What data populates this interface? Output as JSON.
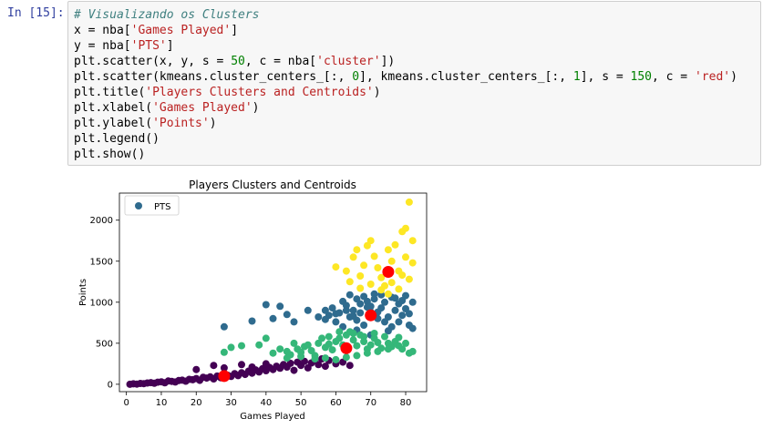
{
  "cell": {
    "prompt": "In [15]:",
    "code_lines": [
      [
        {
          "t": "# Visualizando os Clusters",
          "c": "comment"
        }
      ],
      [
        {
          "t": "x = nba[",
          "c": "plain"
        },
        {
          "t": "'Games Played'",
          "c": "string"
        },
        {
          "t": "]",
          "c": "plain"
        }
      ],
      [
        {
          "t": "y = nba[",
          "c": "plain"
        },
        {
          "t": "'PTS'",
          "c": "string"
        },
        {
          "t": "]",
          "c": "plain"
        }
      ],
      [
        {
          "t": "plt.scatter(x, y, s = ",
          "c": "plain"
        },
        {
          "t": "50",
          "c": "number"
        },
        {
          "t": ", c = nba[",
          "c": "plain"
        },
        {
          "t": "'cluster'",
          "c": "string"
        },
        {
          "t": "])",
          "c": "plain"
        }
      ],
      [
        {
          "t": "plt.scatter(kmeans.cluster_centers_[:, ",
          "c": "plain"
        },
        {
          "t": "0",
          "c": "number"
        },
        {
          "t": "], kmeans.cluster_centers_[:, ",
          "c": "plain"
        },
        {
          "t": "1",
          "c": "number"
        },
        {
          "t": "], s = ",
          "c": "plain"
        },
        {
          "t": "150",
          "c": "number"
        },
        {
          "t": ", c = ",
          "c": "plain"
        },
        {
          "t": "'red'",
          "c": "string"
        },
        {
          "t": ")",
          "c": "plain"
        }
      ],
      [
        {
          "t": "plt.title(",
          "c": "plain"
        },
        {
          "t": "'Players Clusters and Centroids'",
          "c": "string"
        },
        {
          "t": ")",
          "c": "plain"
        }
      ],
      [
        {
          "t": "plt.xlabel(",
          "c": "plain"
        },
        {
          "t": "'Games Played'",
          "c": "string"
        },
        {
          "t": ")",
          "c": "plain"
        }
      ],
      [
        {
          "t": "plt.ylabel(",
          "c": "plain"
        },
        {
          "t": "'Points'",
          "c": "string"
        },
        {
          "t": ")",
          "c": "plain"
        }
      ],
      [
        {
          "t": "plt.legend()",
          "c": "plain"
        }
      ],
      [
        {
          "t": "plt.show()",
          "c": "plain"
        }
      ]
    ]
  },
  "colors": {
    "prompt": "#303f9f",
    "cluster_purple": "#440154",
    "cluster_blue": "#2f6b8e",
    "cluster_green": "#35b779",
    "cluster_yellow": "#fde725",
    "centroid": "#ff0000"
  },
  "chart_data": {
    "type": "scatter",
    "title": "Players Clusters and Centroids",
    "xlabel": "Games Played",
    "ylabel": "Points",
    "xlim": [
      -2,
      86
    ],
    "ylim": [
      -90,
      2330
    ],
    "xticks": [
      0,
      10,
      20,
      30,
      40,
      50,
      60,
      70,
      80
    ],
    "yticks": [
      0,
      500,
      1000,
      1500,
      2000
    ],
    "legend": {
      "label": "PTS",
      "placement": "top-left"
    },
    "series": [
      {
        "cluster": 0,
        "color": "#440154",
        "points": [
          [
            1,
            0
          ],
          [
            2,
            5
          ],
          [
            3,
            2
          ],
          [
            4,
            10
          ],
          [
            5,
            8
          ],
          [
            6,
            15
          ],
          [
            7,
            20
          ],
          [
            8,
            12
          ],
          [
            9,
            25
          ],
          [
            10,
            30
          ],
          [
            11,
            18
          ],
          [
            12,
            40
          ],
          [
            13,
            35
          ],
          [
            14,
            28
          ],
          [
            15,
            45
          ],
          [
            16,
            50
          ],
          [
            17,
            38
          ],
          [
            18,
            60
          ],
          [
            19,
            55
          ],
          [
            20,
            70
          ],
          [
            21,
            48
          ],
          [
            22,
            85
          ],
          [
            23,
            75
          ],
          [
            24,
            90
          ],
          [
            25,
            65
          ],
          [
            26,
            100
          ],
          [
            27,
            80
          ],
          [
            29,
            110
          ],
          [
            30,
            95
          ],
          [
            31,
            130
          ],
          [
            32,
            105
          ],
          [
            33,
            140
          ],
          [
            34,
            120
          ],
          [
            35,
            160
          ],
          [
            36,
            135
          ],
          [
            37,
            175
          ],
          [
            38,
            150
          ],
          [
            39,
            190
          ],
          [
            40,
            165
          ],
          [
            41,
            205
          ],
          [
            42,
            180
          ],
          [
            43,
            220
          ],
          [
            44,
            195
          ],
          [
            45,
            240
          ],
          [
            46,
            210
          ],
          [
            47,
            255
          ],
          [
            48,
            170
          ],
          [
            49,
            270
          ],
          [
            50,
            230
          ],
          [
            51,
            280
          ],
          [
            52,
            200
          ],
          [
            53,
            260
          ],
          [
            54,
            300
          ],
          [
            55,
            240
          ],
          [
            56,
            310
          ],
          [
            57,
            220
          ],
          [
            58,
            290
          ],
          [
            60,
            250
          ],
          [
            62,
            270
          ],
          [
            64,
            230
          ],
          [
            20,
            180
          ],
          [
            25,
            230
          ],
          [
            28,
            200
          ],
          [
            33,
            240
          ],
          [
            36,
            210
          ],
          [
            40,
            250
          ]
        ]
      },
      {
        "cluster": 1,
        "color": "#2f6b8e",
        "points": [
          [
            28,
            700
          ],
          [
            40,
            970
          ],
          [
            44,
            950
          ],
          [
            36,
            770
          ],
          [
            42,
            800
          ],
          [
            46,
            850
          ],
          [
            48,
            760
          ],
          [
            52,
            900
          ],
          [
            55,
            820
          ],
          [
            57,
            790
          ],
          [
            60,
            860
          ],
          [
            62,
            1010
          ],
          [
            63,
            960
          ],
          [
            64,
            1090
          ],
          [
            65,
            900
          ],
          [
            66,
            1040
          ],
          [
            67,
            980
          ],
          [
            68,
            1070
          ],
          [
            69,
            1010
          ],
          [
            70,
            950
          ],
          [
            71,
            1100
          ],
          [
            72,
            880
          ],
          [
            73,
            930
          ],
          [
            74,
            1000
          ],
          [
            75,
            820
          ],
          [
            76,
            1060
          ],
          [
            77,
            900
          ],
          [
            78,
            760
          ],
          [
            79,
            840
          ],
          [
            80,
            1080
          ],
          [
            81,
            720
          ],
          [
            82,
            1000
          ],
          [
            80,
            920
          ],
          [
            78,
            980
          ],
          [
            76,
            700
          ],
          [
            74,
            760
          ],
          [
            72,
            800
          ],
          [
            70,
            880
          ],
          [
            68,
            720
          ],
          [
            66,
            780
          ],
          [
            64,
            820
          ],
          [
            62,
            700
          ],
          [
            60,
            760
          ],
          [
            58,
            840
          ],
          [
            66,
            660
          ],
          [
            70,
            600
          ],
          [
            75,
            650
          ],
          [
            82,
            680
          ],
          [
            81,
            860
          ],
          [
            79,
            1020
          ],
          [
            77,
            1050
          ],
          [
            73,
            1090
          ],
          [
            71,
            1040
          ],
          [
            69,
            940
          ],
          [
            67,
            870
          ],
          [
            65,
            830
          ],
          [
            63,
            900
          ],
          [
            61,
            870
          ],
          [
            59,
            930
          ],
          [
            57,
            900
          ]
        ]
      },
      {
        "cluster": 2,
        "color": "#35b779",
        "points": [
          [
            28,
            390
          ],
          [
            30,
            450
          ],
          [
            33,
            470
          ],
          [
            38,
            480
          ],
          [
            40,
            560
          ],
          [
            42,
            380
          ],
          [
            44,
            430
          ],
          [
            46,
            400
          ],
          [
            47,
            360
          ],
          [
            48,
            500
          ],
          [
            49,
            430
          ],
          [
            50,
            390
          ],
          [
            51,
            460
          ],
          [
            52,
            480
          ],
          [
            53,
            410
          ],
          [
            54,
            350
          ],
          [
            55,
            500
          ],
          [
            56,
            560
          ],
          [
            57,
            450
          ],
          [
            58,
            490
          ],
          [
            59,
            420
          ],
          [
            60,
            520
          ],
          [
            61,
            560
          ],
          [
            62,
            480
          ],
          [
            63,
            600
          ],
          [
            64,
            640
          ],
          [
            65,
            540
          ],
          [
            66,
            470
          ],
          [
            67,
            600
          ],
          [
            68,
            520
          ],
          [
            69,
            430
          ],
          [
            70,
            480
          ],
          [
            71,
            560
          ],
          [
            72,
            510
          ],
          [
            73,
            440
          ],
          [
            74,
            580
          ],
          [
            75,
            500
          ],
          [
            76,
            460
          ],
          [
            77,
            520
          ],
          [
            78,
            570
          ],
          [
            79,
            430
          ],
          [
            80,
            500
          ],
          [
            81,
            380
          ],
          [
            82,
            400
          ],
          [
            78,
            470
          ],
          [
            75,
            430
          ],
          [
            72,
            400
          ],
          [
            69,
            380
          ],
          [
            66,
            350
          ],
          [
            63,
            330
          ],
          [
            60,
            300
          ],
          [
            57,
            320
          ],
          [
            54,
            310
          ],
          [
            50,
            340
          ],
          [
            46,
            320
          ],
          [
            65,
            620
          ],
          [
            68,
            580
          ],
          [
            71,
            620
          ],
          [
            61,
            640
          ],
          [
            58,
            580
          ]
        ]
      },
      {
        "cluster": 3,
        "color": "#fde725",
        "points": [
          [
            60,
            1430
          ],
          [
            64,
            1250
          ],
          [
            65,
            1550
          ],
          [
            67,
            1320
          ],
          [
            68,
            1450
          ],
          [
            69,
            1690
          ],
          [
            70,
            1750
          ],
          [
            71,
            1560
          ],
          [
            72,
            1420
          ],
          [
            73,
            1300
          ],
          [
            74,
            1200
          ],
          [
            75,
            1640
          ],
          [
            76,
            1500
          ],
          [
            77,
            1700
          ],
          [
            78,
            1380
          ],
          [
            79,
            1860
          ],
          [
            80,
            1550
          ],
          [
            81,
            1280
          ],
          [
            82,
            1480
          ],
          [
            80,
            1900
          ],
          [
            82,
            1750
          ],
          [
            81,
            2220
          ],
          [
            78,
            1160
          ],
          [
            76,
            1240
          ],
          [
            73,
            1150
          ],
          [
            70,
            1220
          ],
          [
            67,
            1170
          ],
          [
            79,
            1330
          ],
          [
            75,
            1100
          ],
          [
            66,
            1640
          ],
          [
            63,
            1380
          ]
        ]
      }
    ],
    "centroids": [
      [
        28,
        100
      ],
      [
        63,
        440
      ],
      [
        70,
        840
      ],
      [
        75,
        1370
      ]
    ]
  }
}
